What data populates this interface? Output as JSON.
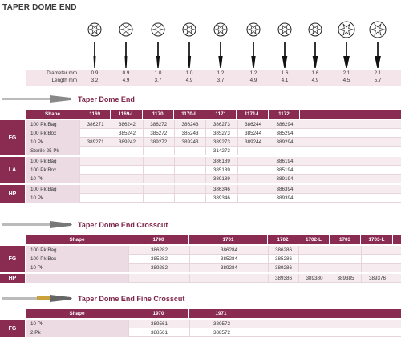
{
  "title": "TAPER DOME END",
  "specs": {
    "diameter_label": "Diameter mm",
    "length_label": "Length mm",
    "items": [
      {
        "diameter": "0.9",
        "length": "3.2"
      },
      {
        "diameter": "0.9",
        "length": "4.9"
      },
      {
        "diameter": "1.0",
        "length": "3.7"
      },
      {
        "diameter": "1.0",
        "length": "4.9"
      },
      {
        "diameter": "1.2",
        "length": "3.7"
      },
      {
        "diameter": "1.2",
        "length": "4.9"
      },
      {
        "diameter": "1.6",
        "length": "4.1"
      },
      {
        "diameter": "1.6",
        "length": "4.9"
      },
      {
        "diameter": "2.1",
        "length": "4.5"
      },
      {
        "diameter": "2.1",
        "length": "5.7"
      }
    ]
  },
  "sections": [
    {
      "heading": "Taper Dome End",
      "columns": [
        "Shape",
        "1169",
        "1169-L",
        "1170",
        "1170-L",
        "1171",
        "1171-L",
        "1172"
      ],
      "groups": [
        {
          "name": "FG",
          "rows": [
            {
              "label": "100 Pk Bag",
              "cells": [
                "386271",
                "386242",
                "386272",
                "386243",
                "386273",
                "386244",
                "386294"
              ]
            },
            {
              "label": "100 Pk Box",
              "cells": [
                null,
                "385242",
                "385272",
                "385243",
                "385273",
                "385244",
                "385294"
              ]
            },
            {
              "label": "10 Pk",
              "cells": [
                "389271",
                "389242",
                "389272",
                "389243",
                "389273",
                "389244",
                "389294"
              ]
            },
            {
              "label": "Sterile  25 Pk",
              "cells": [
                null,
                null,
                null,
                null,
                "314273",
                null,
                null
              ]
            }
          ]
        },
        {
          "name": "LA",
          "rows": [
            {
              "label": "100 Pk Bag",
              "cells": [
                null,
                null,
                null,
                null,
                "386189",
                null,
                "386194"
              ]
            },
            {
              "label": "100 Pk Box",
              "cells": [
                null,
                null,
                null,
                null,
                "385189",
                null,
                "385194"
              ]
            },
            {
              "label": "10 Pk",
              "cells": [
                null,
                null,
                null,
                null,
                "389189",
                null,
                "389194"
              ]
            }
          ]
        },
        {
          "name": "HP",
          "rows": [
            {
              "label": "100 Pk Bag",
              "cells": [
                null,
                null,
                null,
                null,
                "386346",
                null,
                "386394"
              ]
            },
            {
              "label": "10 Pk",
              "cells": [
                null,
                null,
                null,
                null,
                "389346",
                null,
                "389394"
              ]
            }
          ]
        }
      ]
    },
    {
      "heading": "Taper Dome End Crosscut",
      "columns": [
        "Shape",
        "1700",
        "1701",
        "1702",
        "1702-L",
        "1703",
        "1703-L"
      ],
      "groups": [
        {
          "name": "FG",
          "rows": [
            {
              "label": "100 Pk Bag",
              "cells": [
                "386282",
                "386284",
                "386286",
                null,
                null,
                null
              ]
            },
            {
              "label": "100 Pk Box",
              "cells": [
                "385282",
                "385284",
                "385286",
                null,
                null,
                null
              ]
            },
            {
              "label": "10 Pk",
              "cells": [
                "389282",
                "389284",
                "389286",
                null,
                null,
                null
              ]
            }
          ]
        },
        {
          "name": "HP",
          "rows": [
            {
              "label": null,
              "cells": [
                null,
                null,
                "389386",
                "389380",
                "389385",
                "389376"
              ]
            }
          ]
        }
      ]
    },
    {
      "heading": "Taper Dome End Fine Crosscut",
      "columns": [
        "Shape",
        "1970",
        "1971"
      ],
      "groups": [
        {
          "name": "FG",
          "rows": [
            {
              "label": "10 Pk",
              "cells": [
                "389561",
                "389572"
              ]
            },
            {
              "label": "2 Pk",
              "cells": [
                "388561",
                "388572"
              ]
            }
          ]
        }
      ]
    }
  ]
}
